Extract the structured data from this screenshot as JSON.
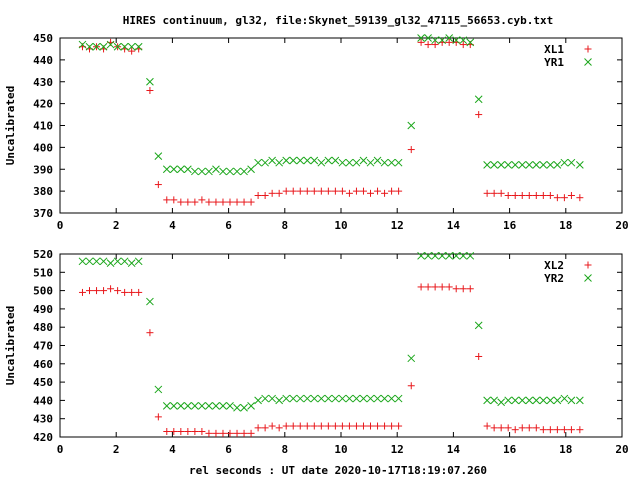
{
  "figure": {
    "title": "HIRES continuum, gl32, file:Skynet_59139_gl32_47115_56653.cyb.txt",
    "xlabel": "rel seconds : UT date 2020-10-17T18:19:07.260"
  },
  "colors": {
    "red": "#e8181c",
    "green": "#1aa61a",
    "axis": "#000000"
  },
  "chart_data": [
    {
      "type": "scatter",
      "ylabel": "Uncalibrated",
      "xlim": [
        0,
        20
      ],
      "ylim": [
        370,
        450
      ],
      "xticks": [
        0,
        2,
        4,
        6,
        8,
        10,
        12,
        14,
        16,
        18,
        20
      ],
      "yticks": [
        370,
        380,
        390,
        400,
        410,
        420,
        430,
        440,
        450
      ],
      "legend_position": "top-right",
      "series": [
        {
          "name": "XL1",
          "marker": "plus",
          "color": "#e8181c",
          "x": [
            0.8,
            1.05,
            1.3,
            1.55,
            1.8,
            2.05,
            2.3,
            2.55,
            2.8,
            3.2,
            3.5,
            3.8,
            4.05,
            4.3,
            4.55,
            4.8,
            5.05,
            5.3,
            5.55,
            5.8,
            6.05,
            6.3,
            6.55,
            6.8,
            7.05,
            7.3,
            7.55,
            7.8,
            8.05,
            8.3,
            8.55,
            8.8,
            9.05,
            9.3,
            9.55,
            9.8,
            10.05,
            10.3,
            10.55,
            10.8,
            11.05,
            11.3,
            11.55,
            11.8,
            12.05,
            12.5,
            12.85,
            13.1,
            13.35,
            13.6,
            13.85,
            14.1,
            14.35,
            14.6,
            14.9,
            15.2,
            15.45,
            15.7,
            15.95,
            16.2,
            16.45,
            16.7,
            16.95,
            17.2,
            17.45,
            17.7,
            17.95,
            18.2,
            18.5
          ],
          "y": [
            446,
            445,
            446,
            445,
            448,
            446,
            445,
            444,
            445,
            426,
            383,
            376,
            376,
            375,
            375,
            375,
            376,
            375,
            375,
            375,
            375,
            375,
            375,
            375,
            378,
            378,
            379,
            379,
            380,
            380,
            380,
            380,
            380,
            380,
            380,
            380,
            380,
            379,
            380,
            380,
            379,
            380,
            379,
            380,
            380,
            399,
            448,
            447,
            447,
            448,
            448,
            448,
            447,
            447,
            415,
            379,
            379,
            379,
            378,
            378,
            378,
            378,
            378,
            378,
            378,
            377,
            377,
            378,
            377
          ]
        },
        {
          "name": "YR1",
          "marker": "cross",
          "color": "#1aa61a",
          "x": [
            0.8,
            1.05,
            1.3,
            1.55,
            1.8,
            2.05,
            2.3,
            2.55,
            2.8,
            3.2,
            3.5,
            3.8,
            4.05,
            4.3,
            4.55,
            4.8,
            5.05,
            5.3,
            5.55,
            5.8,
            6.05,
            6.3,
            6.55,
            6.8,
            7.05,
            7.3,
            7.55,
            7.8,
            8.05,
            8.3,
            8.55,
            8.8,
            9.05,
            9.3,
            9.55,
            9.8,
            10.05,
            10.3,
            10.55,
            10.8,
            11.05,
            11.3,
            11.55,
            11.8,
            12.05,
            12.5,
            12.85,
            13.1,
            13.35,
            13.6,
            13.85,
            14.1,
            14.35,
            14.6,
            14.9,
            15.2,
            15.45,
            15.7,
            15.95,
            16.2,
            16.45,
            16.7,
            16.95,
            17.2,
            17.45,
            17.7,
            17.95,
            18.2,
            18.5
          ],
          "y": [
            447,
            446,
            446,
            446,
            447,
            446,
            446,
            446,
            446,
            430,
            396,
            390,
            390,
            390,
            390,
            389,
            389,
            389,
            390,
            389,
            389,
            389,
            389,
            390,
            393,
            393,
            394,
            393,
            394,
            394,
            394,
            394,
            394,
            393,
            394,
            394,
            393,
            393,
            393,
            394,
            393,
            394,
            393,
            393,
            393,
            410,
            450,
            450,
            449,
            449,
            450,
            449,
            449,
            448,
            422,
            392,
            392,
            392,
            392,
            392,
            392,
            392,
            392,
            392,
            392,
            392,
            393,
            393,
            392
          ]
        }
      ]
    },
    {
      "type": "scatter",
      "ylabel": "Uncalibrated",
      "xlim": [
        0,
        20
      ],
      "ylim": [
        420,
        520
      ],
      "xticks": [
        0,
        2,
        4,
        6,
        8,
        10,
        12,
        14,
        16,
        18,
        20
      ],
      "yticks": [
        420,
        430,
        440,
        450,
        460,
        470,
        480,
        490,
        500,
        510,
        520
      ],
      "legend_position": "top-right",
      "series": [
        {
          "name": "XL2",
          "marker": "plus",
          "color": "#e8181c",
          "x": [
            0.8,
            1.05,
            1.3,
            1.55,
            1.8,
            2.05,
            2.3,
            2.55,
            2.8,
            3.2,
            3.5,
            3.8,
            4.05,
            4.3,
            4.55,
            4.8,
            5.05,
            5.3,
            5.55,
            5.8,
            6.05,
            6.3,
            6.55,
            6.8,
            7.05,
            7.3,
            7.55,
            7.8,
            8.05,
            8.3,
            8.55,
            8.8,
            9.05,
            9.3,
            9.55,
            9.8,
            10.05,
            10.3,
            10.55,
            10.8,
            11.05,
            11.3,
            11.55,
            11.8,
            12.05,
            12.5,
            12.85,
            13.1,
            13.35,
            13.6,
            13.85,
            14.1,
            14.35,
            14.6,
            14.9,
            15.2,
            15.45,
            15.7,
            15.95,
            16.2,
            16.45,
            16.7,
            16.95,
            17.2,
            17.45,
            17.7,
            17.95,
            18.2,
            18.5
          ],
          "y": [
            499,
            500,
            500,
            500,
            501,
            500,
            499,
            499,
            499,
            477,
            431,
            423,
            423,
            423,
            423,
            423,
            423,
            422,
            422,
            422,
            422,
            422,
            422,
            422,
            425,
            425,
            426,
            425,
            426,
            426,
            426,
            426,
            426,
            426,
            426,
            426,
            426,
            426,
            426,
            426,
            426,
            426,
            426,
            426,
            426,
            448,
            502,
            502,
            502,
            502,
            502,
            501,
            501,
            501,
            464,
            426,
            425,
            425,
            425,
            424,
            425,
            425,
            425,
            424,
            424,
            424,
            424,
            424,
            424
          ]
        },
        {
          "name": "YR2",
          "marker": "cross",
          "color": "#1aa61a",
          "x": [
            0.8,
            1.05,
            1.3,
            1.55,
            1.8,
            2.05,
            2.3,
            2.55,
            2.8,
            3.2,
            3.5,
            3.8,
            4.05,
            4.3,
            4.55,
            4.8,
            5.05,
            5.3,
            5.55,
            5.8,
            6.05,
            6.3,
            6.55,
            6.8,
            7.05,
            7.3,
            7.55,
            7.8,
            8.05,
            8.3,
            8.55,
            8.8,
            9.05,
            9.3,
            9.55,
            9.8,
            10.05,
            10.3,
            10.55,
            10.8,
            11.05,
            11.3,
            11.55,
            11.8,
            12.05,
            12.5,
            12.85,
            13.1,
            13.35,
            13.6,
            13.85,
            14.1,
            14.35,
            14.6,
            14.9,
            15.2,
            15.45,
            15.7,
            15.95,
            16.2,
            16.45,
            16.7,
            16.95,
            17.2,
            17.45,
            17.7,
            17.95,
            18.2,
            18.5
          ],
          "y": [
            516,
            516,
            516,
            516,
            515,
            516,
            516,
            515,
            516,
            494,
            446,
            437,
            437,
            437,
            437,
            437,
            437,
            437,
            437,
            437,
            437,
            436,
            436,
            437,
            440,
            441,
            441,
            440,
            441,
            441,
            441,
            441,
            441,
            441,
            441,
            441,
            441,
            441,
            441,
            441,
            441,
            441,
            441,
            441,
            441,
            463,
            519,
            519,
            519,
            519,
            519,
            519,
            519,
            519,
            481,
            440,
            440,
            439,
            440,
            440,
            440,
            440,
            440,
            440,
            440,
            440,
            441,
            440,
            440
          ]
        }
      ]
    }
  ]
}
